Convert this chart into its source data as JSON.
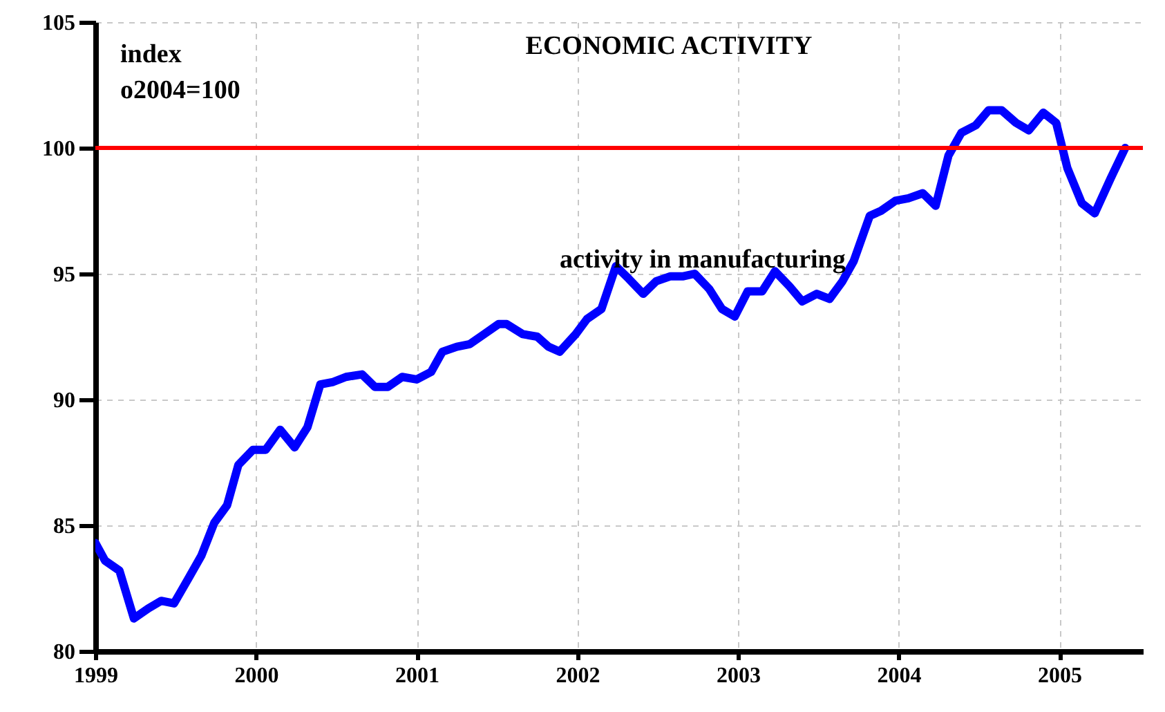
{
  "chart_data": {
    "type": "line",
    "title": "ECONOMIC ACTIVITY",
    "ylabel": "index o2004=100",
    "x": [
      1999.0,
      1999.06,
      1999.15,
      1999.24,
      1999.33,
      1999.41,
      1999.49,
      1999.58,
      1999.66,
      1999.74,
      1999.82,
      1999.89,
      1999.98,
      2000.06,
      2000.15,
      2000.24,
      2000.32,
      2000.4,
      2000.48,
      2000.56,
      2000.66,
      2000.74,
      2000.82,
      2000.91,
      2001.0,
      2001.09,
      2001.16,
      2001.25,
      2001.33,
      2001.42,
      2001.51,
      2001.56,
      2001.66,
      2001.75,
      2001.82,
      2001.89,
      2001.99,
      2002.06,
      2002.15,
      2002.24,
      2002.32,
      2002.41,
      2002.49,
      2002.58,
      2002.66,
      2002.73,
      2002.82,
      2002.9,
      2002.98,
      2003.06,
      2003.15,
      2003.23,
      2003.32,
      2003.4,
      2003.49,
      2003.57,
      2003.65,
      2003.72,
      2003.82,
      2003.89,
      2003.98,
      2004.06,
      2004.15,
      2004.23,
      2004.31,
      2004.39,
      2004.48,
      2004.56,
      2004.64,
      2004.73,
      2004.81,
      2004.9,
      2004.98,
      2005.05,
      2005.14,
      2005.22,
      2005.32,
      2005.41
    ],
    "series": [
      {
        "name": "activity in manufacturing",
        "color": "#0000ff",
        "values": [
          84.3,
          83.6,
          83.2,
          81.3,
          81.7,
          82.0,
          81.9,
          82.9,
          83.8,
          85.1,
          85.8,
          87.4,
          88.0,
          88.0,
          88.8,
          88.1,
          88.9,
          90.6,
          90.7,
          90.9,
          91.0,
          90.5,
          90.5,
          90.9,
          90.8,
          91.1,
          91.9,
          92.1,
          92.2,
          92.6,
          93.0,
          93.0,
          92.6,
          92.5,
          92.1,
          91.9,
          92.6,
          93.2,
          93.6,
          95.3,
          94.8,
          94.2,
          94.7,
          94.9,
          94.9,
          95.0,
          94.4,
          93.6,
          93.3,
          94.3,
          94.3,
          95.1,
          94.5,
          93.9,
          94.2,
          94.0,
          94.7,
          95.5,
          97.3,
          97.5,
          97.9,
          98.0,
          98.2,
          97.7,
          99.7,
          100.6,
          100.9,
          101.5,
          101.5,
          101.0,
          100.7,
          101.4,
          101.0,
          99.2,
          97.8,
          97.4,
          98.8,
          100.0
        ]
      }
    ],
    "xlim": [
      1999,
      2005.52
    ],
    "xticks": [
      1999,
      2000,
      2001,
      2002,
      2003,
      2004,
      2005
    ],
    "ylim": [
      80,
      105
    ],
    "yticks": [
      80,
      85,
      90,
      95,
      100,
      105
    ],
    "grid": true,
    "line_style": "solid",
    "marker": "none",
    "ref_lines": [
      {
        "axis": "y",
        "value": 100,
        "color": "#ff0000"
      }
    ]
  }
}
